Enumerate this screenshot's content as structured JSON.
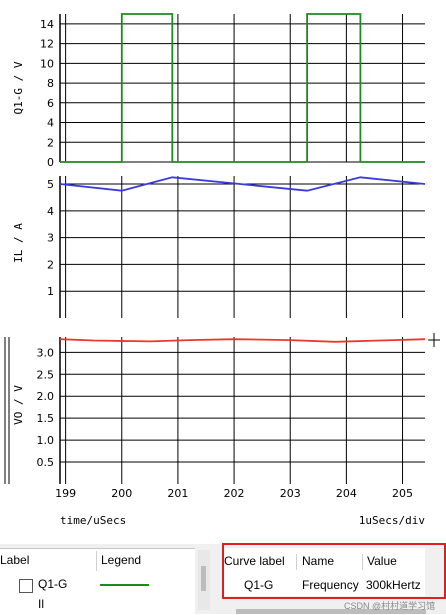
{
  "chart_data": [
    {
      "type": "line",
      "ylabel": "Q1-G / V",
      "ylim": [
        0,
        15
      ],
      "yticks": [
        0,
        2,
        4,
        6,
        8,
        10,
        12,
        14
      ],
      "series": [
        {
          "name": "Q1-G",
          "color": "#1e8a1e",
          "x": [
            198.9,
            200.0,
            200.0,
            200.9,
            200.9,
            203.3,
            203.3,
            204.25,
            204.25,
            205.4
          ],
          "y": [
            0,
            0,
            15,
            15,
            0,
            0,
            15,
            15,
            0,
            0
          ]
        }
      ]
    },
    {
      "type": "line",
      "ylabel": "IL / A",
      "ylim": [
        0,
        5.3
      ],
      "yticks": [
        1,
        2,
        3,
        4,
        5
      ],
      "series": [
        {
          "name": "IL",
          "color": "#3a3ae0",
          "x": [
            198.9,
            200.0,
            200.9,
            203.3,
            204.25,
            205.4
          ],
          "y": [
            5.0,
            4.75,
            5.25,
            4.75,
            5.25,
            5.0
          ]
        }
      ]
    },
    {
      "type": "line",
      "ylabel": "VO / V",
      "ylim": [
        0,
        3.35
      ],
      "yticks": [
        0.5,
        1.0,
        1.5,
        2.0,
        2.5,
        3.0
      ],
      "series": [
        {
          "name": "VO",
          "color": "#e83a2a",
          "x": [
            198.9,
            199.5,
            200.5,
            201.2,
            202.0,
            203.0,
            203.8,
            204.6,
            205.4
          ],
          "y": [
            3.3,
            3.27,
            3.25,
            3.28,
            3.3,
            3.28,
            3.24,
            3.27,
            3.3
          ]
        }
      ]
    }
  ],
  "x_axis": {
    "xlim": [
      198.9,
      205.4
    ],
    "ticks": [
      199,
      200,
      201,
      202,
      203,
      204,
      205
    ],
    "xlabel": "time/uSecs",
    "scale_label": "1uSecs/div"
  },
  "legend_panel": {
    "col_label": "Label",
    "col_legend": "Legend",
    "rows": [
      {
        "label": "Q1-G",
        "color": "#1e8a1e"
      },
      {
        "label": "IL"
      }
    ]
  },
  "info_panel": {
    "headers": [
      "Curve label",
      "Name",
      "Value"
    ],
    "row": [
      "Q1-G",
      "Frequency",
      "300kHertz"
    ]
  },
  "watermark": "CSDN @村村道学习馆"
}
